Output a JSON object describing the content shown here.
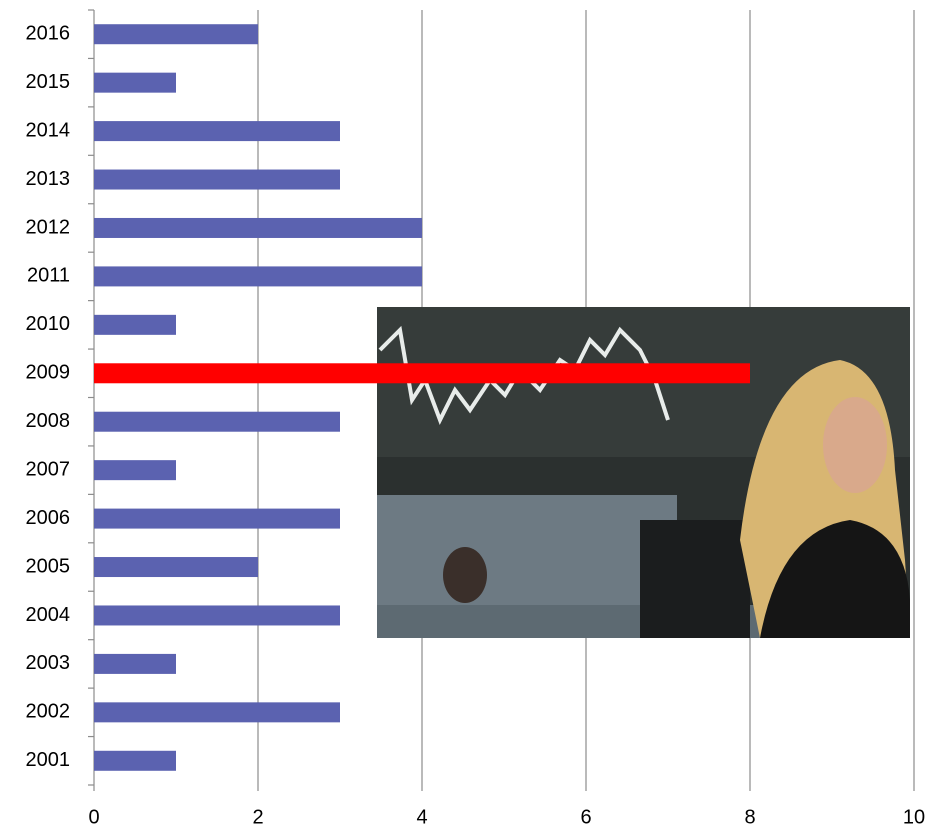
{
  "chart_data": {
    "type": "bar",
    "orientation": "horizontal",
    "categories": [
      "2016",
      "2015",
      "2014",
      "2013",
      "2012",
      "2011",
      "2010",
      "2009",
      "2008",
      "2007",
      "2006",
      "2005",
      "2004",
      "2003",
      "2002",
      "2001"
    ],
    "values": [
      2,
      1,
      3,
      3,
      4,
      4,
      1,
      8,
      3,
      1,
      3,
      2,
      3,
      1,
      3,
      1
    ],
    "colors": [
      "#5b62b0",
      "#5b62b0",
      "#5b62b0",
      "#5b62b0",
      "#5b62b0",
      "#5b62b0",
      "#5b62b0",
      "#ff0000",
      "#5b62b0",
      "#5b62b0",
      "#5b62b0",
      "#5b62b0",
      "#5b62b0",
      "#5b62b0",
      "#5b62b0",
      "#5b62b0"
    ],
    "xlim": [
      0,
      10
    ],
    "xticks": [
      0,
      2,
      4,
      6,
      8,
      10
    ],
    "grid": true
  }
}
